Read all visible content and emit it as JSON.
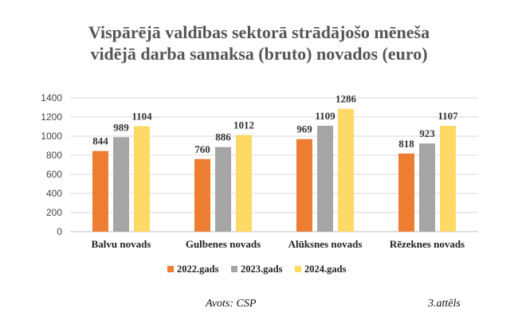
{
  "chart_data": {
    "type": "bar",
    "title_lines": [
      "Vispārējā valdības sektorā strādājošo mēneša",
      "vidējā darba samaksa (bruto) novados (euro)"
    ],
    "categories": [
      "Balvu novads",
      "Gulbenes novads",
      "Alūksnes novads",
      "Rēzeknes novads"
    ],
    "series": [
      {
        "name": "2022.gads",
        "color": "#ED7D31",
        "values": [
          844,
          760,
          969,
          818
        ]
      },
      {
        "name": "2023.gads",
        "color": "#A5A5A5",
        "values": [
          989,
          886,
          1109,
          923
        ]
      },
      {
        "name": "2024.gads",
        "color": "#FFD966",
        "values": [
          1104,
          1012,
          1286,
          1107
        ]
      }
    ],
    "ylim": [
      0,
      1400
    ],
    "yticks": [
      0,
      200,
      400,
      600,
      800,
      1000,
      1200,
      1400
    ],
    "grid": true,
    "legend_position": "bottom",
    "xlabel": "",
    "ylabel": ""
  },
  "footer": {
    "source": "Avots: CSP",
    "figure": "3.attēls"
  }
}
